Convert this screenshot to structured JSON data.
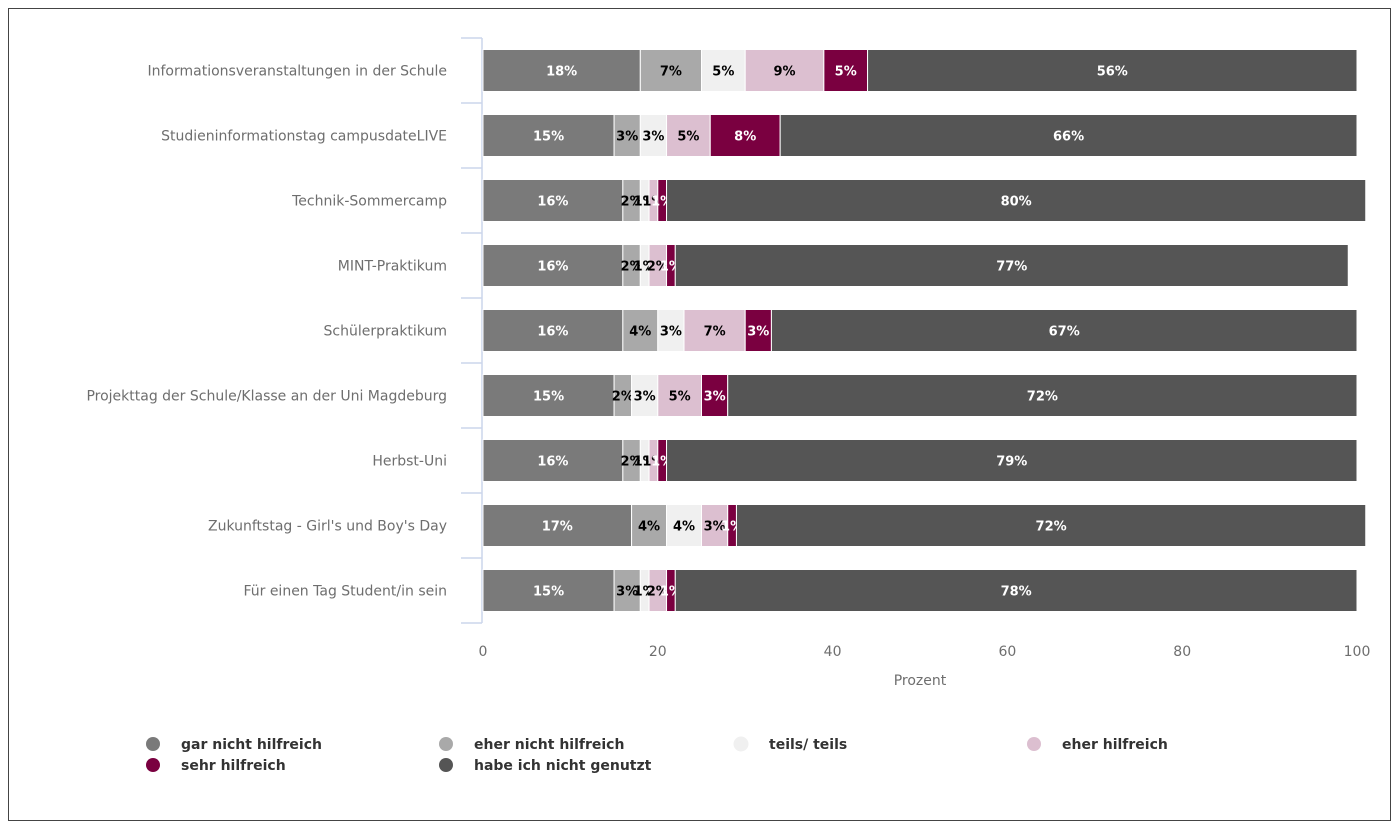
{
  "chart_data": {
    "type": "bar",
    "orientation": "horizontal",
    "stacked": true,
    "title": "",
    "xlabel": "Prozent",
    "ylabel": "",
    "xlim": [
      0,
      100
    ],
    "xticks": [
      0,
      20,
      40,
      60,
      80,
      100
    ],
    "grid": false,
    "legend_position": "bottom",
    "categories": [
      "Informationsveranstaltungen in der Schule",
      "Studieninformationstag campusdateLIVE",
      "Technik-Sommercamp",
      "MINT-Praktikum",
      "Schülerpraktikum",
      "Projekttag der Schule/Klasse an der Uni Magdeburg",
      "Herbst-Uni",
      "Zukunftstag - Girl's und Boy's Day",
      "Für einen Tag Student/in sein"
    ],
    "series": [
      {
        "name": "gar nicht hilfreich",
        "color": "#7a7a7a",
        "label_color": "#ffffff",
        "values": [
          18,
          15,
          16,
          16,
          16,
          15,
          16,
          17,
          15
        ]
      },
      {
        "name": "eher nicht hilfreich",
        "color": "#a9a9a9",
        "label_color": "#000000",
        "values": [
          7,
          3,
          2,
          2,
          4,
          2,
          2,
          4,
          3
        ]
      },
      {
        "name": "teils/ teils",
        "color": "#f0f0f0",
        "label_color": "#000000",
        "values": [
          5,
          3,
          1,
          1,
          3,
          3,
          1,
          4,
          1
        ]
      },
      {
        "name": "eher hilfreich",
        "color": "#dcbfd0",
        "label_color": "#000000",
        "values": [
          9,
          5,
          1,
          2,
          7,
          5,
          1,
          3,
          2
        ]
      },
      {
        "name": "sehr hilfreich",
        "color": "#7a0040",
        "label_color": "#ffffff",
        "values": [
          5,
          8,
          1,
          1,
          3,
          3,
          1,
          1,
          1
        ]
      },
      {
        "name": "habe ich nicht genutzt",
        "color": "#555555",
        "label_color": "#ffffff",
        "values": [
          56,
          66,
          80,
          77,
          67,
          72,
          79,
          72,
          78
        ]
      }
    ]
  }
}
